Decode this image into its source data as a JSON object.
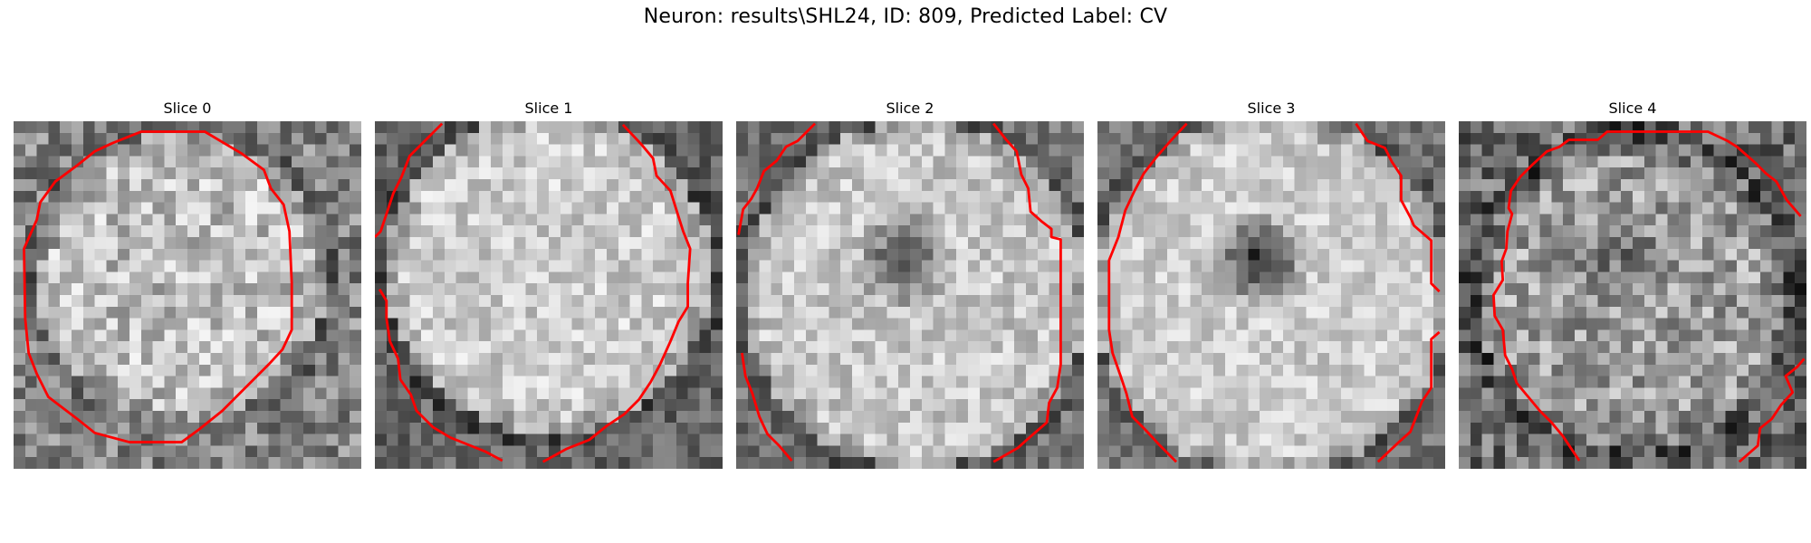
{
  "figure": {
    "title": "Neuron: results\\SHL24, ID: 809, Predicted Label: CV"
  },
  "slices": [
    {
      "title": "Slice 0"
    },
    {
      "title": "Slice 1"
    },
    {
      "title": "Slice 2"
    },
    {
      "title": "Slice 3"
    },
    {
      "title": "Slice 4"
    }
  ],
  "colors": {
    "contour": "#ff0000",
    "background": "#ffffff"
  },
  "image": {
    "grid_cells": 30,
    "colormap": "gray"
  }
}
